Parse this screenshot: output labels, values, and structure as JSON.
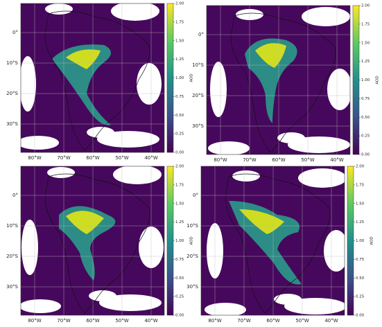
{
  "panels": [
    {
      "lat_labels": [
        "0°",
        "10°S",
        "20°S",
        "30°S"
      ],
      "lon_labels": [
        "80°W",
        "70°W",
        "60°W",
        "50°W",
        "40°W"
      ],
      "colorbar": {
        "label": "AOD",
        "ticks": [
          "0.00",
          "0.25",
          "0.50",
          "0.75",
          "1.00",
          "1.25",
          "1.50",
          "1.75",
          "2.00"
        ]
      }
    },
    {
      "lat_labels": [
        "0°",
        "10°S",
        "20°S",
        "30°S"
      ],
      "lon_labels": [
        "80°W",
        "70°W",
        "60°W",
        "50°W",
        "40°W"
      ],
      "colorbar": {
        "label": "AOD",
        "ticks": [
          "0.00",
          "0.25",
          "0.50",
          "0.75",
          "1.00",
          "1.25",
          "1.50",
          "1.75",
          "2.00"
        ]
      }
    },
    {
      "lat_labels": [
        "0°",
        "10°S",
        "20°S",
        "30°S"
      ],
      "lon_labels": [
        "80°W",
        "70°W",
        "60°W",
        "50°W",
        "40°W"
      ],
      "colorbar": {
        "label": "AOD",
        "ticks": [
          "0.00",
          "0.25",
          "0.50",
          "0.75",
          "1.00",
          "1.25",
          "1.50",
          "1.75",
          "2.00"
        ]
      }
    },
    {
      "lat_labels": [
        "0°",
        "10°S",
        "20°S",
        "30°S"
      ],
      "lon_labels": [
        "80°W",
        "70°W",
        "60°W",
        "50°W",
        "40°W"
      ],
      "colorbar": {
        "label": "AOD",
        "ticks": [
          "0.00",
          "0.25",
          "0.50",
          "0.75",
          "1.00",
          "1.25",
          "1.50",
          "1.75",
          "2.00"
        ]
      }
    }
  ]
}
